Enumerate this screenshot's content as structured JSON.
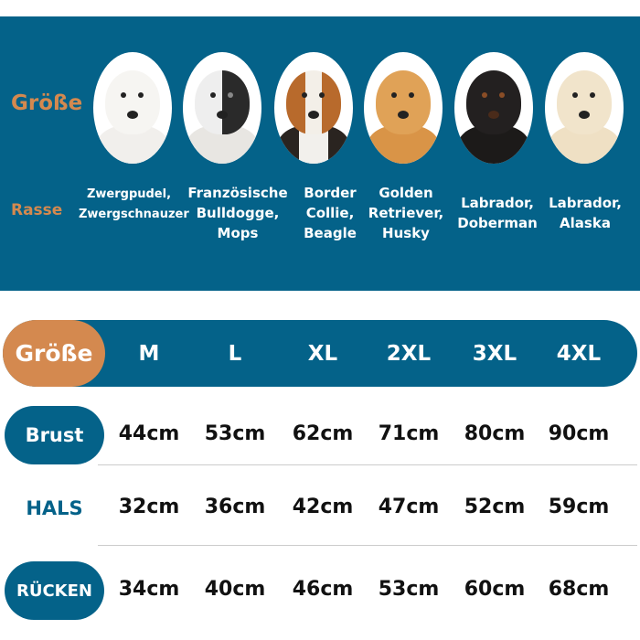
{
  "banner": {
    "size_label": "Größe",
    "breed_label": "Rasse",
    "dogs": [
      {
        "icon": "poodle-photo",
        "breed_line1": "Zwergpudel,",
        "breed_line2": "Zwergschnauzer",
        "breed_line3": ""
      },
      {
        "icon": "french-bulldog-photo",
        "breed_line1": "Französische",
        "breed_line2": "Bulldogge,",
        "breed_line3": "Mops"
      },
      {
        "icon": "beagle-photo",
        "breed_line1": "Border",
        "breed_line2": "Collie,",
        "breed_line3": "Beagle"
      },
      {
        "icon": "golden-retriever-photo",
        "breed_line1": "Golden",
        "breed_line2": "Retriever,",
        "breed_line3": "Husky"
      },
      {
        "icon": "doberman-photo",
        "breed_line1": "Labrador,",
        "breed_line2": "Doberman",
        "breed_line3": ""
      },
      {
        "icon": "labrador-photo",
        "breed_line1": "Labrador,",
        "breed_line2": "Alaska",
        "breed_line3": ""
      }
    ]
  },
  "table": {
    "header_label": "Größe",
    "sizes": [
      "M",
      "L",
      "XL",
      "2XL",
      "3XL",
      "4XL"
    ],
    "rows": [
      {
        "label": "Brust",
        "values": [
          "44cm",
          "53cm",
          "62cm",
          "71cm",
          "80cm",
          "90cm"
        ]
      },
      {
        "label": "HALS",
        "values": [
          "32cm",
          "36cm",
          "42cm",
          "47cm",
          "52cm",
          "59cm"
        ]
      },
      {
        "label": "RÜCKEN",
        "values": [
          "34cm",
          "40cm",
          "46cm",
          "53cm",
          "60cm",
          "68cm"
        ]
      }
    ]
  },
  "colors": {
    "primary": "#046289",
    "accent": "#d4894f"
  }
}
